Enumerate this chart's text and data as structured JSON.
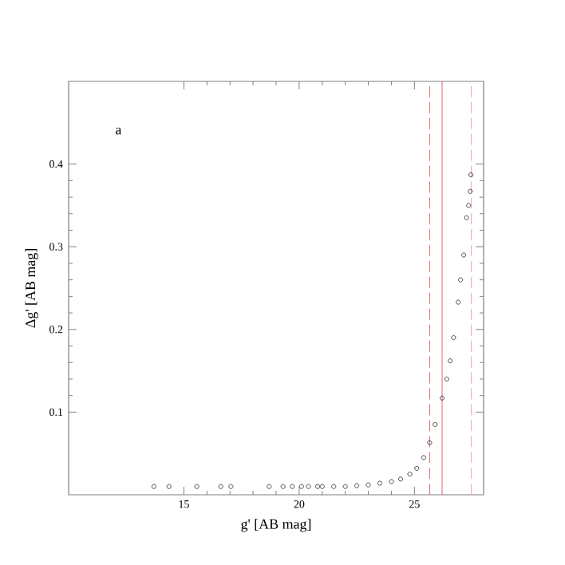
{
  "chart_data": {
    "type": "scatter",
    "xlabel": "g' [AB mag]",
    "ylabel": "Δg' [AB mag]",
    "annotations": [
      "a"
    ],
    "xlim": [
      10,
      28
    ],
    "ylim": [
      0,
      0.5
    ],
    "xticks": [
      15,
      20,
      25
    ],
    "yticks": [
      0.1,
      0.2,
      0.3,
      0.4
    ],
    "marker": "circle",
    "grid": false,
    "series": [
      {
        "color": "#000000",
        "x": [
          13.7,
          14.35,
          15.56,
          16.6,
          17.04,
          18.7,
          19.3,
          19.7,
          20.1,
          20.4,
          20.8,
          21.0,
          21.5,
          22.0,
          22.5,
          23.0,
          23.5,
          24.0,
          24.4,
          24.8,
          25.1,
          25.4,
          25.66,
          25.9,
          26.2,
          26.4,
          26.55,
          26.7,
          26.9,
          27.0,
          27.14,
          27.26,
          27.35,
          27.42,
          27.45
        ],
        "values": [
          0.01,
          0.01,
          0.01,
          0.01,
          0.01,
          0.01,
          0.01,
          0.01,
          0.01,
          0.01,
          0.01,
          0.01,
          0.01,
          0.01,
          0.011,
          0.012,
          0.014,
          0.016,
          0.019,
          0.025,
          0.032,
          0.045,
          0.063,
          0.085,
          0.117,
          0.14,
          0.162,
          0.19,
          0.233,
          0.26,
          0.29,
          0.335,
          0.35,
          0.367,
          0.387
        ]
      }
    ],
    "ref_lines": [
      {
        "axis": "x",
        "value": 25.66,
        "color": "#e06666",
        "line_style": "dashed"
      },
      {
        "axis": "x",
        "value": 26.2,
        "color": "#e06666",
        "line_style": "solid"
      },
      {
        "axis": "x",
        "value": 27.47,
        "color": "#f2a0a0",
        "line_style": "dashed"
      }
    ]
  }
}
